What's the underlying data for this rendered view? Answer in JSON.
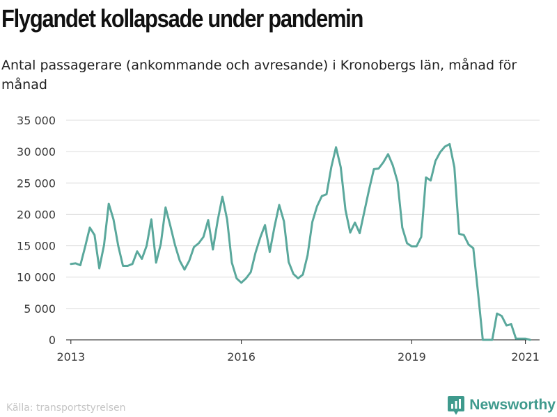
{
  "header": {
    "title": "Flygandet kollapsade under pandemin",
    "subtitle": "Antal passagerare (ankommande och avresande) i Kronobergs län, månad för månad"
  },
  "footer": {
    "source": "Källa: transportstyrelsen",
    "brand": "Newsworthy",
    "brand_color": "#3f9a8d"
  },
  "chart_data": {
    "type": "line",
    "title": "Flygandet kollapsade under pandemin",
    "subtitle": "Antal passagerare (ankommande och avresande) i Kronobergs län, månad för månad",
    "xlabel": "",
    "ylabel": "",
    "ylim": [
      0,
      35000
    ],
    "yticks": [
      0,
      5000,
      10000,
      15000,
      20000,
      25000,
      30000,
      35000
    ],
    "ytick_labels": [
      "0",
      "5 000",
      "10 000",
      "15 000",
      "20 000",
      "25 000",
      "30 000",
      "35 000"
    ],
    "xticks": [
      "2013-01",
      "2016-01",
      "2019-01",
      "2021-01"
    ],
    "xtick_labels": [
      "2013",
      "2016",
      "2019",
      "2021"
    ],
    "x_range": [
      "2012-12",
      "2021-04"
    ],
    "grid": "horizontal",
    "line_color": "#5aa89c",
    "series": [
      {
        "x": [
          "2013-01",
          "2013-02",
          "2013-03",
          "2013-04",
          "2013-05",
          "2013-06",
          "2013-07",
          "2013-08",
          "2013-09",
          "2013-10",
          "2013-11",
          "2013-12",
          "2014-01",
          "2014-02",
          "2014-03",
          "2014-04",
          "2014-05",
          "2014-06",
          "2014-07",
          "2014-08",
          "2014-09",
          "2014-10",
          "2014-11",
          "2014-12",
          "2015-01",
          "2015-02",
          "2015-03",
          "2015-04",
          "2015-05",
          "2015-06",
          "2015-07",
          "2015-08",
          "2015-09",
          "2015-10",
          "2015-11",
          "2015-12",
          "2016-01",
          "2016-02",
          "2016-03",
          "2016-04",
          "2016-05",
          "2016-06",
          "2016-07",
          "2016-08",
          "2016-09",
          "2016-10",
          "2016-11",
          "2016-12",
          "2017-01",
          "2017-02",
          "2017-03",
          "2017-04",
          "2017-05",
          "2017-06",
          "2017-07",
          "2017-08",
          "2017-09",
          "2017-10",
          "2017-11",
          "2017-12",
          "2018-01",
          "2018-02",
          "2018-03",
          "2018-04",
          "2018-05",
          "2018-06",
          "2018-07",
          "2018-08",
          "2018-09",
          "2018-10",
          "2018-11",
          "2018-12",
          "2019-01",
          "2019-02",
          "2019-03",
          "2019-04",
          "2019-05",
          "2019-06",
          "2019-07",
          "2019-08",
          "2019-09",
          "2019-10",
          "2019-11",
          "2019-12",
          "2020-01",
          "2020-02",
          "2020-03",
          "2020-04",
          "2020-05",
          "2020-06",
          "2020-07",
          "2020-08",
          "2020-09",
          "2020-10",
          "2020-11",
          "2020-12",
          "2021-01",
          "2021-02"
        ],
        "values": [
          12100,
          12200,
          11900,
          14800,
          17900,
          16700,
          11400,
          15100,
          21700,
          19200,
          15000,
          11800,
          11800,
          12100,
          14100,
          12900,
          15000,
          19200,
          12300,
          15300,
          21100,
          18200,
          15100,
          12600,
          11200,
          12600,
          14800,
          15400,
          16400,
          19100,
          14400,
          19000,
          22800,
          19200,
          12300,
          9800,
          9100,
          9800,
          10800,
          13900,
          16300,
          18300,
          14000,
          18000,
          21500,
          18900,
          12400,
          10500,
          9800,
          10400,
          13500,
          18800,
          21300,
          22900,
          23200,
          27500,
          30700,
          27500,
          20700,
          17100,
          18700,
          17000,
          20500,
          24000,
          27200,
          27300,
          28300,
          29600,
          27800,
          25200,
          17900,
          15400,
          14900,
          14900,
          16400,
          25900,
          25400,
          28500,
          29900,
          30800,
          31200,
          27500,
          16900,
          16700,
          15200,
          14600,
          7500,
          0,
          0,
          0,
          4200,
          3800,
          2300,
          2500,
          200,
          200,
          200,
          0
        ]
      }
    ]
  }
}
